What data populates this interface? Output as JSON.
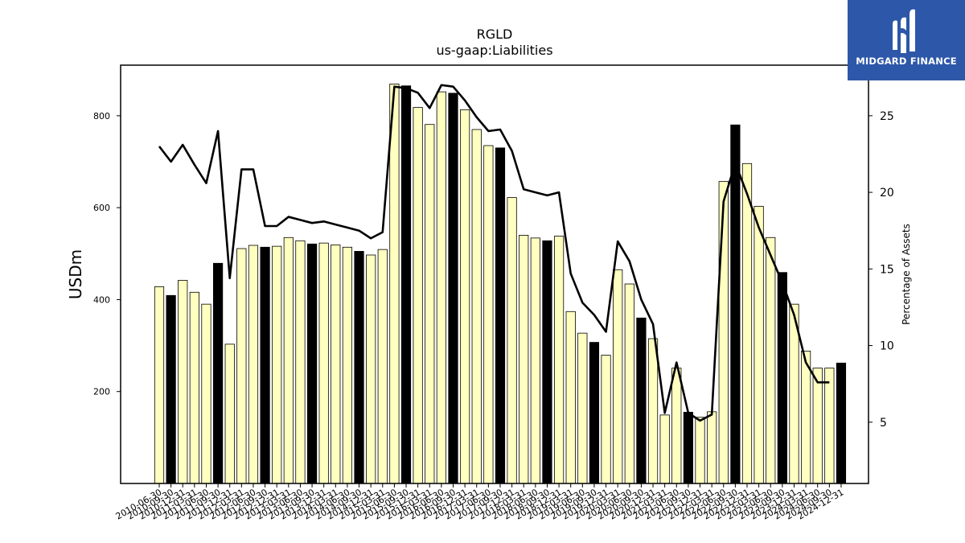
{
  "chart_data": {
    "type": "bar",
    "title": "RGLD",
    "subtitle": "us-gaap:Liabilities",
    "ylabel": "USDm",
    "y2label": "Percentage of Assets",
    "ylim": [
      0,
      910
    ],
    "y2lim": [
      1,
      28.3
    ],
    "yticks": [
      200,
      400,
      600,
      800
    ],
    "y2ticks": [
      5,
      10,
      15,
      20,
      25
    ],
    "colors": {
      "bar_light": "#ffffc0",
      "bar_dark": "#000000",
      "line": "#000000"
    },
    "categories": [
      "2010-06-30",
      "2010-09-30",
      "2010-12-31",
      "2011-03-31",
      "2011-06-30",
      "2011-09-30",
      "2011-12-31",
      "2012-03-31",
      "2012-06-30",
      "2012-09-30",
      "2012-12-31",
      "2013-03-31",
      "2013-06-30",
      "2013-09-30",
      "2013-12-31",
      "2014-03-31",
      "2014-06-30",
      "2014-09-30",
      "2014-12-31",
      "2015-03-31",
      "2015-06-30",
      "2015-09-30",
      "2015-12-31",
      "2016-03-31",
      "2016-06-30",
      "2016-09-30",
      "2016-12-31",
      "2017-03-31",
      "2017-06-30",
      "2017-09-30",
      "2017-12-31",
      "2018-03-31",
      "2018-06-30",
      "2018-09-30",
      "2018-12-31",
      "2019-03-31",
      "2019-06-30",
      "2019-09-30",
      "2019-12-31",
      "2020-03-31",
      "2020-06-30",
      "2020-09-30",
      "2020-12-31",
      "2021-03-31",
      "2021-06-30",
      "2021-09-30",
      "2021-12-31",
      "2022-03-31",
      "2022-06-30",
      "2022-09-30",
      "2022-12-31",
      "2023-03-31",
      "2023-06-30",
      "2023-09-30",
      "2023-12-31",
      "2024-03-31",
      "2024-06-30",
      "2024-09-30",
      "2024-12-31"
    ],
    "series": [
      {
        "type": "bar",
        "values": [
          428,
          409,
          442,
          416,
          390,
          479,
          303,
          511,
          518,
          514,
          516,
          535,
          528,
          521,
          523,
          519,
          514,
          505,
          497,
          509,
          869,
          865,
          818,
          781,
          852,
          849,
          813,
          770,
          735,
          730,
          622,
          540,
          534,
          528,
          538,
          374,
          327,
          307,
          279,
          465,
          434,
          360,
          315,
          149,
          251,
          155,
          144,
          156,
          657,
          780,
          696,
          603,
          535,
          459,
          390,
          288,
          251,
          251,
          262
        ],
        "dark": [
          false,
          true,
          false,
          false,
          false,
          true,
          false,
          false,
          false,
          true,
          false,
          false,
          false,
          true,
          false,
          false,
          false,
          true,
          false,
          false,
          false,
          true,
          false,
          false,
          false,
          true,
          false,
          false,
          false,
          true,
          false,
          false,
          false,
          true,
          false,
          false,
          false,
          true,
          false,
          false,
          false,
          true,
          false,
          false,
          false,
          true,
          false,
          false,
          false,
          true,
          false,
          false,
          false,
          true,
          false,
          false,
          false,
          false,
          true
        ]
      },
      {
        "type": "line",
        "axis": "right",
        "values": [
          23.0,
          22.0,
          23.1,
          21.8,
          20.6,
          24.0,
          14.4,
          21.5,
          21.5,
          17.8,
          17.8,
          18.4,
          18.2,
          18.0,
          18.1,
          17.9,
          17.7,
          17.5,
          17.0,
          17.4,
          26.9,
          26.8,
          26.5,
          25.5,
          27.0,
          26.9,
          26.0,
          24.9,
          24.0,
          24.1,
          22.7,
          20.2,
          20.0,
          19.8,
          20.0,
          14.7,
          12.8,
          12.0,
          10.9,
          16.8,
          15.5,
          13.0,
          11.4,
          5.6,
          8.9,
          5.6,
          5.1,
          5.5,
          19.4,
          21.9,
          19.9,
          17.7,
          15.9,
          14.1,
          12.0,
          8.9,
          7.6,
          7.6,
          null
        ]
      }
    ]
  },
  "logo": {
    "text": "MIDGARD FINANCE"
  }
}
